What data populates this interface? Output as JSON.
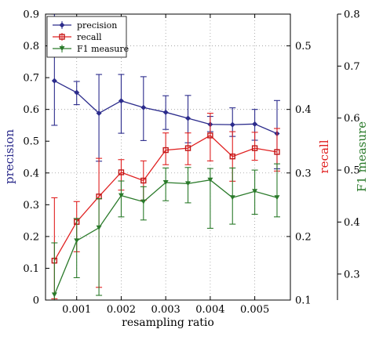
{
  "chart_data": {
    "type": "line",
    "title": "",
    "xlabel": "resampling ratio",
    "x": [
      0.0005,
      0.001,
      0.0015,
      0.002,
      0.0025,
      0.003,
      0.0035,
      0.004,
      0.0045,
      0.005,
      0.0055
    ],
    "xlim": [
      0.0003,
      0.0058
    ],
    "xticks": [
      0.001,
      0.002,
      0.003,
      0.004,
      0.005
    ],
    "xtick_labels": [
      "0.001",
      "0.002",
      "0.003",
      "0.004",
      "0.005"
    ],
    "grid": true,
    "legend_placement": "top-left",
    "axes": {
      "left": {
        "label": "precision",
        "color": "#2c2c8c",
        "range": [
          0,
          0.9
        ],
        "ticks": [
          0,
          0.1,
          0.2,
          0.3,
          0.4,
          0.5,
          0.6,
          0.7,
          0.8,
          0.9
        ],
        "tick_labels": [
          "0",
          "0.1",
          "0.2",
          "0.3",
          "0.4",
          "0.5",
          "0.6",
          "0.7",
          "0.8",
          "0.9"
        ]
      },
      "right1": {
        "label": "recall",
        "color": "#e02020",
        "range": [
          0.1,
          0.55
        ],
        "ticks": [
          0.1,
          0.2,
          0.3,
          0.4,
          0.5
        ],
        "tick_labels": [
          "0.1",
          "0.2",
          "0.3",
          "0.4",
          "0.5"
        ]
      },
      "right2": {
        "label": "F1 measure",
        "color": "#2a7a2a",
        "range": [
          0.25,
          0.8
        ],
        "ticks": [
          0.3,
          0.4,
          0.5,
          0.6,
          0.7,
          0.8
        ],
        "tick_labels": [
          "0.3",
          "0.4",
          "0.5",
          "0.6",
          "0.7",
          "0.8"
        ]
      }
    },
    "series": [
      {
        "name": "precision",
        "axis": "left",
        "color": "#2c2c8c",
        "marker": "diamond",
        "values": [
          0.69,
          0.653,
          0.588,
          0.627,
          0.606,
          0.591,
          0.572,
          0.553,
          0.552,
          0.554,
          0.524
        ],
        "err_low": [
          0.55,
          0.615,
          0.437,
          0.525,
          0.502,
          0.537,
          0.495,
          0.53,
          0.515,
          0.503,
          0.413
        ],
        "err_high": [
          0.9,
          0.688,
          0.71,
          0.71,
          0.703,
          0.643,
          0.644,
          0.578,
          0.605,
          0.6,
          0.628
        ]
      },
      {
        "name": "recall",
        "axis": "right1",
        "color": "#e02020",
        "marker": "square",
        "values": [
          0.162,
          0.223,
          0.263,
          0.301,
          0.288,
          0.336,
          0.339,
          0.359,
          0.326,
          0.339,
          0.333
        ],
        "err_low": [
          0.102,
          0.176,
          0.12,
          0.273,
          0.257,
          0.313,
          0.313,
          0.319,
          0.287,
          0.32,
          0.303
        ],
        "err_high": [
          0.261,
          0.255,
          0.323,
          0.321,
          0.319,
          0.363,
          0.363,
          0.394,
          0.365,
          0.364,
          0.37
        ]
      },
      {
        "name": "F1 measure",
        "axis": "right2",
        "color": "#2a7a2a",
        "marker": "triangle-down",
        "values": [
          0.26,
          0.364,
          0.389,
          0.451,
          0.439,
          0.476,
          0.474,
          0.481,
          0.447,
          0.459,
          0.447
        ],
        "err_low": [
          0.25,
          0.293,
          0.259,
          0.41,
          0.404,
          0.441,
          0.437,
          0.388,
          0.396,
          0.415,
          0.41
        ],
        "err_high": [
          0.36,
          0.407,
          0.445,
          0.479,
          0.468,
          0.504,
          0.505,
          0.503,
          0.504,
          0.5,
          0.512
        ]
      }
    ]
  }
}
